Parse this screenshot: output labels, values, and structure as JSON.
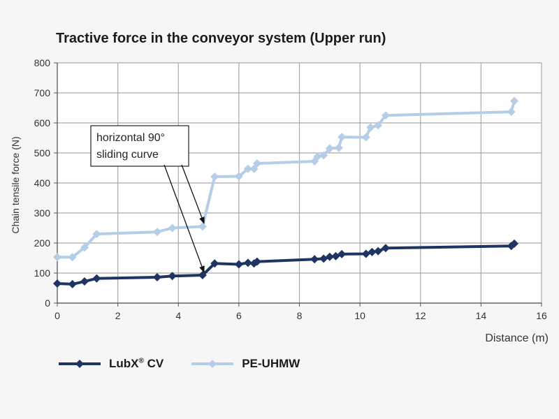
{
  "chart_data": {
    "type": "line",
    "title": "Tractive force in the conveyor system (Upper run)",
    "xlabel": "Distance (m)",
    "ylabel": "Chain tensile force (N)",
    "xlim": [
      0,
      16
    ],
    "ylim": [
      0,
      800
    ],
    "xticks": [
      "0",
      "2",
      "4",
      "6",
      "8",
      "10",
      "12",
      "14",
      "16"
    ],
    "yticks": [
      "0",
      "100",
      "200",
      "300",
      "400",
      "500",
      "600",
      "700",
      "800"
    ],
    "grid": true,
    "legend_position": "bottom-left",
    "series": [
      {
        "name": "LubX® CV",
        "color": "#1f3461",
        "points": [
          [
            0,
            65
          ],
          [
            0.5,
            63
          ],
          [
            0.9,
            72
          ],
          [
            1.3,
            82
          ],
          [
            3.3,
            86
          ],
          [
            3.8,
            90
          ],
          [
            4.8,
            93
          ],
          [
            5.2,
            132
          ],
          [
            6.0,
            129
          ],
          [
            6.3,
            134
          ],
          [
            6.5,
            132
          ],
          [
            6.6,
            138
          ],
          [
            8.5,
            146
          ],
          [
            8.8,
            148
          ],
          [
            9.0,
            154
          ],
          [
            9.2,
            156
          ],
          [
            9.4,
            163
          ],
          [
            10.2,
            164
          ],
          [
            10.4,
            170
          ],
          [
            10.6,
            173
          ],
          [
            10.85,
            183
          ],
          [
            15.0,
            190
          ],
          [
            15.1,
            198
          ]
        ]
      },
      {
        "name": "PE-UHMW",
        "color": "#b6cde8",
        "points": [
          [
            0,
            153
          ],
          [
            0.5,
            153
          ],
          [
            0.9,
            185
          ],
          [
            1.3,
            230
          ],
          [
            3.3,
            237
          ],
          [
            3.8,
            250
          ],
          [
            4.8,
            255
          ],
          [
            5.2,
            421
          ],
          [
            6.0,
            422
          ],
          [
            6.3,
            447
          ],
          [
            6.5,
            447
          ],
          [
            6.6,
            465
          ],
          [
            8.5,
            472
          ],
          [
            8.6,
            488
          ],
          [
            8.8,
            492
          ],
          [
            9.0,
            515
          ],
          [
            9.3,
            517
          ],
          [
            9.4,
            553
          ],
          [
            10.2,
            552
          ],
          [
            10.35,
            585
          ],
          [
            10.6,
            592
          ],
          [
            10.85,
            625
          ],
          [
            15.0,
            637
          ],
          [
            15.1,
            673
          ]
        ]
      }
    ],
    "annotation": {
      "lines": [
        "horizontal 90°",
        "sliding curve"
      ],
      "arrows": [
        [
          4.85,
          256
        ],
        [
          4.85,
          93
        ]
      ]
    }
  },
  "legend": {
    "item1_base": "LubX",
    "item1_sup": "®",
    "item1_rest": " CV",
    "item2": "PE-UHMW"
  }
}
